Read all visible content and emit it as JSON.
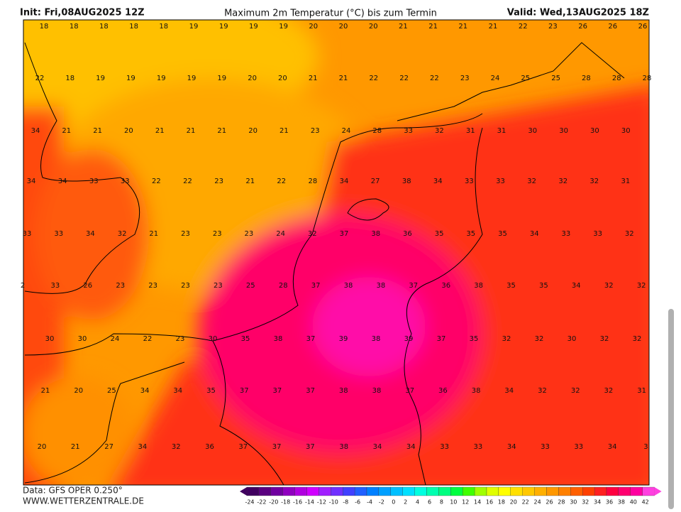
{
  "header": {
    "init": "Init: Fri,08AUG2025 12Z",
    "title": "Maximum 2m Temperatur (°C) bis zum Termin",
    "valid": "Valid: Wed,13AUG2025 18Z"
  },
  "map": {
    "rows": [
      [
        18,
        18,
        18,
        18,
        18,
        19,
        19,
        19,
        19,
        20,
        20,
        20,
        21,
        21,
        21,
        21,
        22,
        23,
        26,
        26,
        26
      ],
      [
        22,
        18,
        19,
        19,
        19,
        19,
        19,
        20,
        20,
        21,
        21,
        22,
        22,
        22,
        23,
        24,
        25,
        25,
        28,
        28,
        28
      ],
      [
        34,
        21,
        21,
        20,
        21,
        21,
        21,
        20,
        21,
        23,
        24,
        28,
        33,
        32,
        31,
        31,
        30,
        30,
        30,
        30
      ],
      [
        34,
        34,
        33,
        33,
        22,
        22,
        23,
        21,
        22,
        28,
        34,
        27,
        38,
        34,
        33,
        33,
        32,
        32,
        32,
        31
      ],
      [
        33,
        33,
        34,
        32,
        21,
        23,
        23,
        23,
        24,
        32,
        37,
        38,
        36,
        35,
        35,
        35,
        34,
        33,
        33,
        32
      ],
      [
        2,
        33,
        26,
        23,
        23,
        23,
        23,
        25,
        28,
        37,
        38,
        38,
        37,
        36,
        38,
        35,
        35,
        34,
        32,
        32
      ],
      [
        30,
        30,
        24,
        22,
        23,
        30,
        35,
        38,
        37,
        39,
        38,
        39,
        37,
        35,
        32,
        32,
        30,
        32,
        32
      ],
      [
        21,
        20,
        25,
        34,
        34,
        35,
        37,
        37,
        37,
        38,
        38,
        37,
        36,
        38,
        34,
        32,
        32,
        32,
        31
      ],
      [
        20,
        21,
        27,
        34,
        32,
        36,
        37,
        37,
        37,
        38,
        34,
        34,
        33,
        33,
        34,
        33,
        33,
        34,
        3
      ]
    ]
  },
  "scale": {
    "labels": [
      -24,
      -22,
      -20,
      -18,
      -16,
      -14,
      -12,
      -10,
      -8,
      -6,
      -4,
      -2,
      0,
      2,
      4,
      6,
      8,
      10,
      12,
      14,
      16,
      18,
      20,
      22,
      24,
      26,
      28,
      30,
      32,
      34,
      36,
      38,
      40,
      42
    ],
    "colors": [
      "#400060",
      "#5a0080",
      "#7000a0",
      "#9000c0",
      "#b000e0",
      "#d000ff",
      "#a020ff",
      "#7030ff",
      "#4040ff",
      "#2060ff",
      "#0080ff",
      "#00a0ff",
      "#00c0ff",
      "#00e0ff",
      "#00ffe0",
      "#00ffb0",
      "#00ff80",
      "#00ff40",
      "#40ff00",
      "#a0ff00",
      "#e0ff00",
      "#ffff00",
      "#ffe000",
      "#ffc800",
      "#ffb000",
      "#ff9800",
      "#ff8000",
      "#ff6000",
      "#ff4000",
      "#ff2020",
      "#ff0040",
      "#ff0070",
      "#ff00a0",
      "#ff40e0"
    ]
  },
  "footer": {
    "source": "Data: GFS OPER 0.250°",
    "site": "WWW.WETTERZENTRALE.DE"
  }
}
